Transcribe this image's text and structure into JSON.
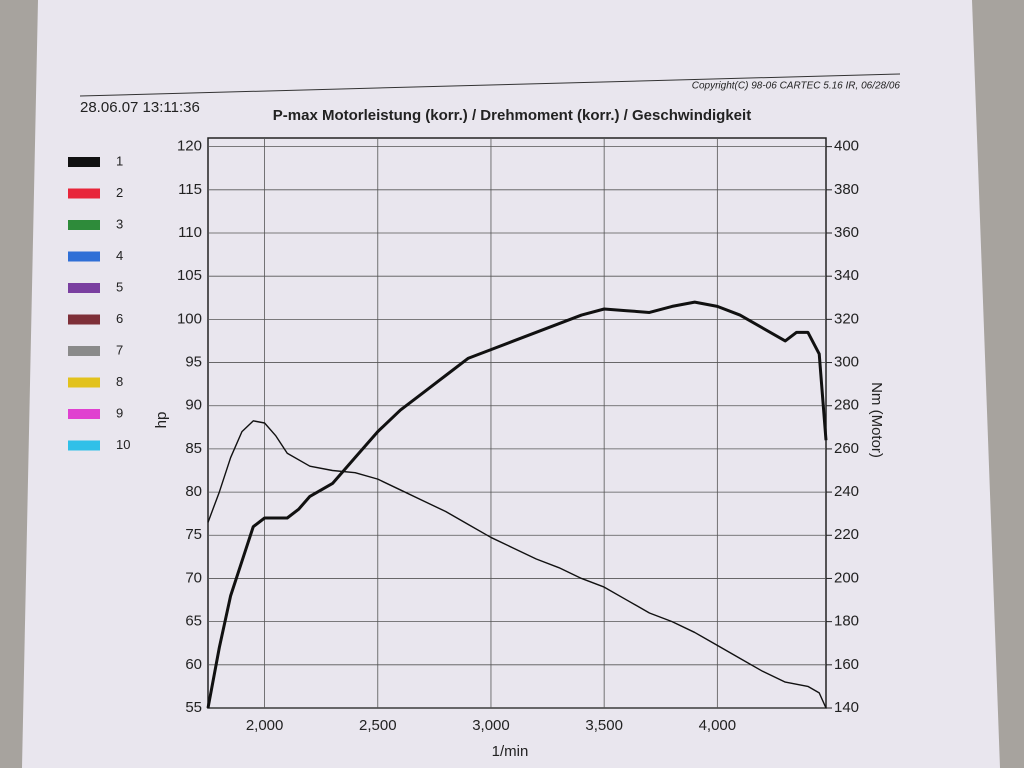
{
  "chart_data": {
    "type": "line",
    "timestamp": "28.06.07 13:11:36",
    "copyright": "Copyright(C) 98-06 CARTEC 5.16 IR, 06/28/06",
    "title": "P-max Motorleistung (korr.) / Drehmoment (korr.) / Geschwindigkeit",
    "x_label": "1/min",
    "y_label": "hp",
    "y2_label": "Nm (Motor)",
    "xlim": [
      1750,
      4480
    ],
    "xticks": [
      {
        "value": 2000,
        "label": "2,000"
      },
      {
        "value": 2500,
        "label": "2,500"
      },
      {
        "value": 3000,
        "label": "3,000"
      },
      {
        "value": 3500,
        "label": "3,500"
      },
      {
        "value": 4000,
        "label": "4,000"
      }
    ],
    "ylim": [
      55,
      121
    ],
    "yticks": [
      55,
      60,
      65,
      70,
      75,
      80,
      85,
      90,
      95,
      100,
      105,
      110,
      115,
      120
    ],
    "y2lim": [
      140,
      404
    ],
    "y2ticks": [
      140,
      160,
      180,
      200,
      220,
      240,
      260,
      280,
      300,
      320,
      340,
      360,
      380,
      400
    ],
    "grid": true,
    "legend": [
      {
        "name": "1",
        "color": "#111111"
      },
      {
        "name": "2",
        "color": "#e8253a"
      },
      {
        "name": "3",
        "color": "#2e8b3a"
      },
      {
        "name": "4",
        "color": "#2f6fd6"
      },
      {
        "name": "5",
        "color": "#7a3fa0"
      },
      {
        "name": "6",
        "color": "#7e2f38"
      },
      {
        "name": "7",
        "color": "#8a8a8a"
      },
      {
        "name": "8",
        "color": "#e2c21c"
      },
      {
        "name": "9",
        "color": "#e040d0"
      },
      {
        "name": "10",
        "color": "#30c0e8"
      }
    ],
    "series": [
      {
        "color": "#111111",
        "width": 3,
        "x": [
          1750,
          1800,
          1850,
          1900,
          1950,
          2000,
          2050,
          2100,
          2150,
          2200,
          2300,
          2400,
          2500,
          2600,
          2700,
          2800,
          2900,
          3000,
          3100,
          3200,
          3300,
          3400,
          3500,
          3600,
          3700,
          3800,
          3900,
          4000,
          4100,
          4200,
          4300,
          4350,
          4400,
          4450,
          4480
        ],
        "values": [
          55,
          62,
          68,
          72,
          76,
          77,
          77,
          77,
          78,
          79.5,
          81,
          84,
          87,
          89.5,
          91.5,
          93.5,
          95.5,
          96.5,
          97.5,
          98.5,
          99.5,
          100.5,
          101.2,
          101,
          100.8,
          101.5,
          102,
          101.5,
          100.5,
          99,
          97.5,
          98.5,
          98.5,
          96,
          86
        ]
      },
      {
        "color": "#111111",
        "width": 1.4,
        "axis": "y2",
        "x": [
          1750,
          1800,
          1850,
          1900,
          1950,
          2000,
          2050,
          2100,
          2200,
          2300,
          2400,
          2500,
          2600,
          2700,
          2800,
          2900,
          3000,
          3100,
          3200,
          3300,
          3400,
          3500,
          3600,
          3700,
          3800,
          3900,
          4000,
          4100,
          4200,
          4300,
          4400,
          4450,
          4480
        ],
        "values": [
          226,
          240,
          256,
          268,
          273,
          272,
          266,
          258,
          252,
          250,
          249,
          246,
          241,
          236,
          231,
          225,
          219,
          214,
          209,
          205,
          200,
          196,
          190,
          184,
          180,
          175,
          169,
          163,
          157,
          152,
          150,
          147,
          140
        ]
      }
    ]
  }
}
